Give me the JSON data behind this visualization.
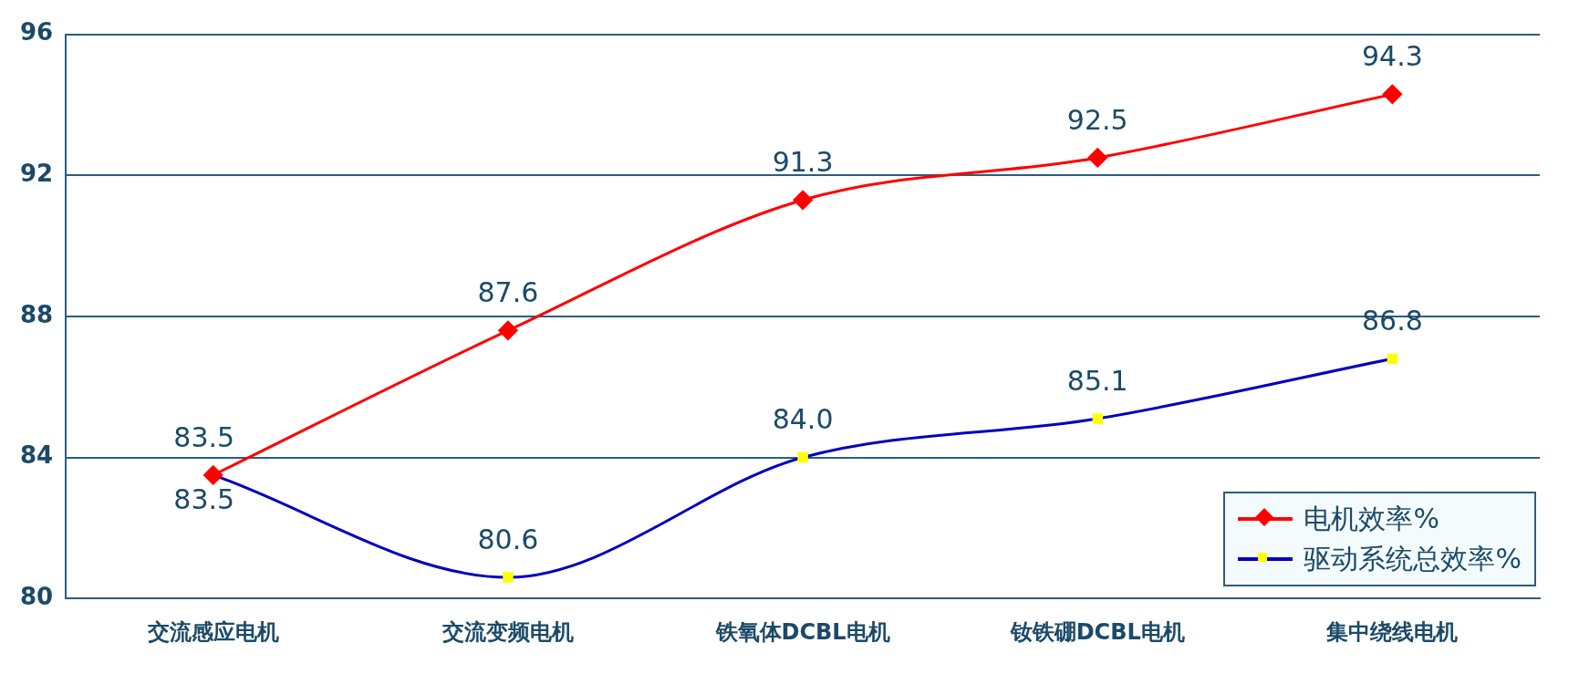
{
  "chart_data": {
    "type": "line",
    "categories": [
      "交流感应电机",
      "交流变频电机",
      "铁氧体DCBL电机",
      "钕铁硼DCBL电机",
      "集中绕线电机"
    ],
    "series": [
      {
        "name": "电机效率%",
        "color": "#ff0000",
        "marker": "diamond",
        "values": [
          83.5,
          87.6,
          91.3,
          92.5,
          94.3
        ]
      },
      {
        "name": "驱动系统总效率%",
        "color": "#0000c0",
        "marker": "square",
        "values": [
          83.5,
          80.6,
          84.0,
          85.1,
          86.8
        ]
      }
    ],
    "value_labels": [
      [
        "83.5",
        "87.6",
        "91.3",
        "92.5",
        "94.3"
      ],
      [
        "83.5",
        "80.6",
        "84.0",
        "85.1",
        "86.8"
      ]
    ],
    "ylim": [
      80,
      96
    ],
    "yticks": [
      80,
      84,
      88,
      92,
      96
    ],
    "grid": "y",
    "legend": "bottom right"
  }
}
